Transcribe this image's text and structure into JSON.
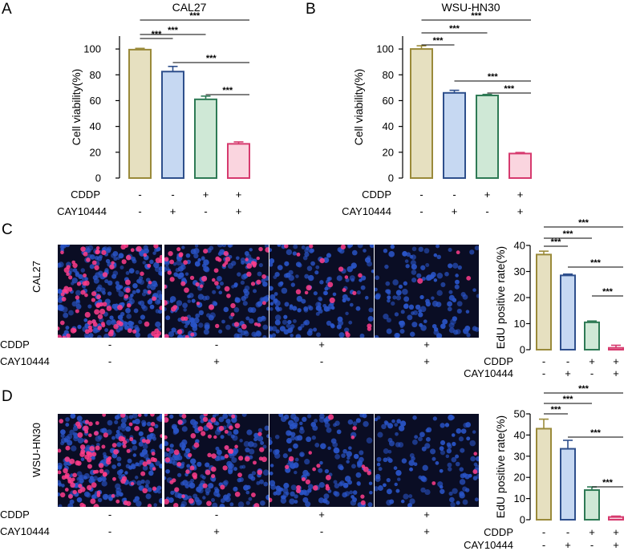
{
  "panel_labels": {
    "A": "A",
    "B": "B",
    "C": "C",
    "D": "D"
  },
  "conditions": {
    "cddp_label": "CDDP",
    "cay_label": "CAY10444",
    "cddp": [
      "-",
      "-",
      "+",
      "+"
    ],
    "cay": [
      "-",
      "+",
      "-",
      "+"
    ]
  },
  "microscopy": {
    "C": {
      "cell_line": "CAL27",
      "nuclear_stain": "#2a55c9",
      "edu_stain": "#ff3d8b",
      "edu_density": [
        0.42,
        0.3,
        0.12,
        0.02
      ]
    },
    "D": {
      "cell_line": "WSU-HN30",
      "nuclear_stain": "#2a55c9",
      "edu_stain": "#ff3d8b",
      "edu_density": [
        0.45,
        0.33,
        0.14,
        0.02
      ]
    }
  },
  "colors": {
    "series_fill": [
      "#e6e0c0",
      "#c6d8f2",
      "#cfe8d6",
      "#fad5df"
    ],
    "series_stroke": [
      "#9a8a3a",
      "#2e4f8c",
      "#2e7a55",
      "#d63a6e"
    ]
  },
  "chart_data": [
    {
      "id": "A",
      "type": "bar",
      "title": "CAL27",
      "ylabel": "Cell viability(%)",
      "ylim": [
        0,
        110
      ],
      "yticks": [
        "0",
        "20",
        "40",
        "60",
        "80",
        "100"
      ],
      "categories": [
        "CDDP-/CAY10444-",
        "CDDP-/CAY10444+",
        "CDDP+/CAY10444-",
        "CDDP+/CAY10444+"
      ],
      "values": [
        99.5,
        82.5,
        61,
        26.5
      ],
      "errors": [
        1.0,
        4.0,
        2.5,
        1.5
      ],
      "significance": [
        {
          "a": 0,
          "b": 1,
          "label": "***"
        },
        {
          "a": 0,
          "b": 2,
          "label": "***"
        },
        {
          "a": 0,
          "b": 3,
          "label": "***"
        },
        {
          "a": 1,
          "b": 3,
          "label": "***"
        },
        {
          "a": 2,
          "b": 3,
          "label": "***"
        }
      ]
    },
    {
      "id": "B",
      "type": "bar",
      "title": "WSU-HN30",
      "ylabel": "Cell viability(%)",
      "ylim": [
        0,
        110
      ],
      "yticks": [
        "0",
        "20",
        "40",
        "60",
        "80",
        "100"
      ],
      "categories": [
        "CDDP-/CAY10444-",
        "CDDP-/CAY10444+",
        "CDDP+/CAY10444-",
        "CDDP+/CAY10444+"
      ],
      "values": [
        100,
        66,
        64,
        19
      ],
      "errors": [
        2.5,
        2.0,
        0.8,
        0.8
      ],
      "significance": [
        {
          "a": 0,
          "b": 1,
          "label": "***"
        },
        {
          "a": 0,
          "b": 2,
          "label": "***"
        },
        {
          "a": 0,
          "b": 3,
          "label": "***"
        },
        {
          "a": 1,
          "b": 3,
          "label": "***"
        },
        {
          "a": 2,
          "b": 3,
          "label": "***"
        }
      ]
    },
    {
      "id": "C",
      "type": "bar",
      "title": "",
      "ylabel": "EdU positive rate(%)",
      "ylim": [
        0,
        40
      ],
      "yticks": [
        "0",
        "10",
        "20",
        "30",
        "40"
      ],
      "categories": [
        "CDDP-/CAY10444-",
        "CDDP-/CAY10444+",
        "CDDP+/CAY10444-",
        "CDDP+/CAY10444+"
      ],
      "values": [
        36.5,
        28.5,
        10.5,
        0.7
      ],
      "errors": [
        1.3,
        0.5,
        0.5,
        1.0
      ],
      "significance": [
        {
          "a": 0,
          "b": 1,
          "label": "***"
        },
        {
          "a": 0,
          "b": 2,
          "label": "***"
        },
        {
          "a": 0,
          "b": 3,
          "label": "***"
        },
        {
          "a": 1,
          "b": 3,
          "label": "***"
        },
        {
          "a": 2,
          "b": 3,
          "label": "***"
        }
      ]
    },
    {
      "id": "D",
      "type": "bar",
      "title": "",
      "ylabel": "EdU positive rate(%)",
      "ylim": [
        0,
        50
      ],
      "yticks": [
        "0",
        "10",
        "20",
        "30",
        "40",
        "50"
      ],
      "categories": [
        "CDDP-/CAY10444-",
        "CDDP-/CAY10444+",
        "CDDP+/CAY10444-",
        "CDDP+/CAY10444+"
      ],
      "values": [
        43,
        33.5,
        14,
        1.3
      ],
      "errors": [
        4.5,
        4.0,
        1.5,
        0.4
      ],
      "significance": [
        {
          "a": 0,
          "b": 1,
          "label": "***"
        },
        {
          "a": 0,
          "b": 2,
          "label": "***"
        },
        {
          "a": 0,
          "b": 3,
          "label": "***"
        },
        {
          "a": 1,
          "b": 3,
          "label": "***"
        },
        {
          "a": 2,
          "b": 3,
          "label": "***"
        }
      ]
    }
  ]
}
